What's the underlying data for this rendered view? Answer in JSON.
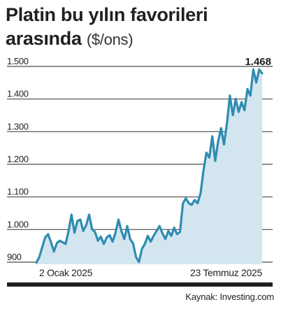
{
  "header": {
    "title_main": "Platin bu yılın favorileri arasında",
    "title_unit": "($/ons)"
  },
  "source": "Kaynak: Investing.com",
  "chart_data": {
    "type": "area",
    "ylim": [
      880,
      1500
    ],
    "yticks": [
      1500,
      1400,
      1300,
      1200,
      1100,
      1000,
      900
    ],
    "ytick_labels": [
      "1.500",
      "1.400",
      "1.300",
      "1.200",
      "1.100",
      "1.000",
      "900"
    ],
    "x_tick_labels": [
      "2 Ocak 2025",
      "23 Temmuz 2025"
    ],
    "last_value_label": "1.468",
    "line_color": "#2f8db0",
    "fill_color": "#d3e6f0",
    "values": [
      888,
      905,
      935,
      965,
      975,
      950,
      922,
      948,
      955,
      950,
      945,
      985,
      1035,
      980,
      1015,
      1020,
      985,
      1003,
      1035,
      990,
      982,
      955,
      968,
      945,
      965,
      972,
      952,
      980,
      1020,
      985,
      960,
      1000,
      960,
      947,
      905,
      890,
      930,
      945,
      970,
      952,
      970,
      985,
      1000,
      978,
      960,
      985,
      970,
      995,
      975,
      982,
      1070,
      1085,
      1070,
      1065,
      1080,
      1070,
      1100,
      1170,
      1225,
      1210,
      1275,
      1200,
      1260,
      1300,
      1250,
      1315,
      1400,
      1340,
      1390,
      1350,
      1380,
      1355,
      1420,
      1400,
      1480,
      1440,
      1480,
      1468
    ]
  }
}
